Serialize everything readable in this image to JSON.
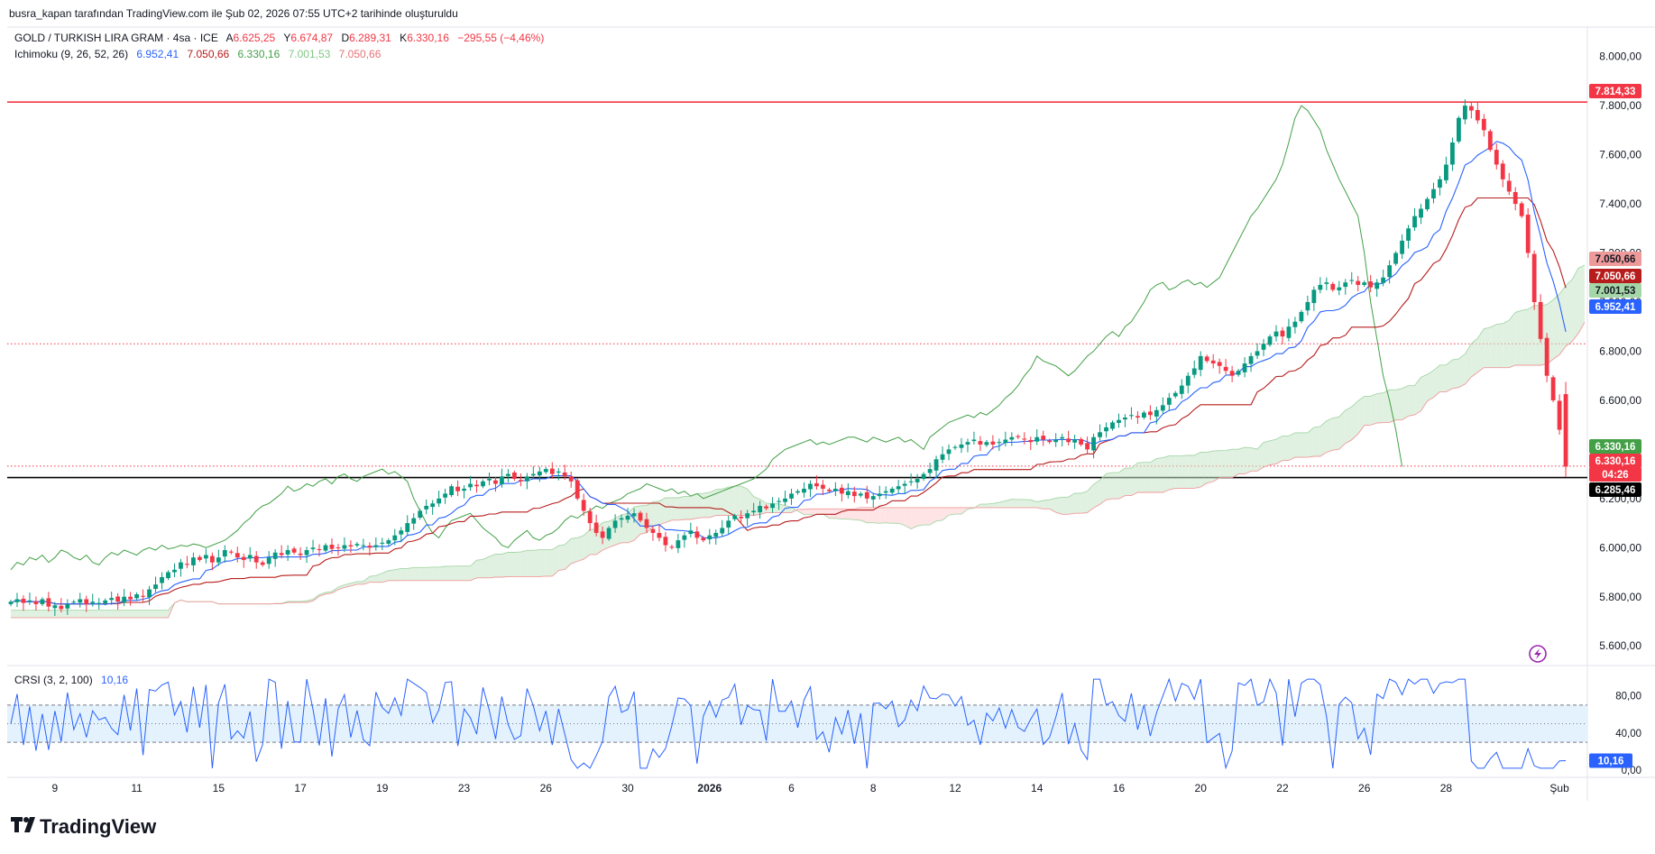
{
  "header": {
    "credit": "busra_kapan tarafından TradingView.com ile Şub 02, 2026 07:55 UTC+2 tarihinde oluşturuldu"
  },
  "legend": {
    "symbol": "GOLD / TURKISH LIRA GRAM · 4sa · ICE",
    "ohlc": [
      {
        "label": "A",
        "value": "6.625,25"
      },
      {
        "label": "Y",
        "value": "6.674,87"
      },
      {
        "label": "D",
        "value": "6.289,31"
      },
      {
        "label": "K",
        "value": "6.330,16"
      }
    ],
    "change": "−295,55 (−4,46%)",
    "indicator_name": "Ichimoku (9, 26, 52, 26)",
    "indicator_values": [
      {
        "value": "6.952,41",
        "color": "#2962ff"
      },
      {
        "value": "7.050,66",
        "color": "#b71c1c"
      },
      {
        "value": "6.330,16",
        "color": "#43a047"
      },
      {
        "value": "7.001,53",
        "color": "#a5d6a7"
      },
      {
        "value": "7.050,66",
        "color": "#ef9a9a"
      }
    ]
  },
  "crsi": {
    "name": "CRSI (3, 2, 100)",
    "value": "10,16",
    "axis": [
      "80,00",
      "40,00",
      "0,00"
    ],
    "upper": 70,
    "lower": 30,
    "line_color": "#2962ff",
    "band_fill": "#e3f2fd"
  },
  "price_tags": [
    {
      "value": "7.814,33",
      "bg": "#f23645",
      "fg": "#ffffff"
    },
    {
      "value": "7.050,66",
      "bg": "#ef9a9a",
      "fg": "#131722"
    },
    {
      "value": "7.050,66",
      "bg": "#b71c1c",
      "fg": "#ffffff"
    },
    {
      "value": "7.001,53",
      "bg": "#a5d6a7",
      "fg": "#131722"
    },
    {
      "value": "6.952,41",
      "bg": "#2962ff",
      "fg": "#ffffff"
    },
    {
      "value": "6.330,16",
      "bg": "#43a047",
      "fg": "#ffffff"
    },
    {
      "value": "6.330,16",
      "bg": "#f23645",
      "fg": "#ffffff"
    },
    {
      "value": "04:26",
      "bg": "#f23645",
      "fg": "#ffffff"
    },
    {
      "value": "6.285,46",
      "bg": "#000000",
      "fg": "#ffffff"
    }
  ],
  "brand": {
    "logo_text": "TradingView"
  },
  "colors": {
    "up": "#089981",
    "down": "#f23645",
    "tenkan": "#2962ff",
    "kijun": "#b71c1c",
    "chikou": "#43a047",
    "senkou_a": "#a5d6a7",
    "senkou_b": "#ef9a9a",
    "cloud_up": "#c8e6c9",
    "cloud_down": "#ffcdd2",
    "resistance": "#f23645",
    "support": "#000000",
    "dotted": "#f23645"
  },
  "chart_data": {
    "type": "candlestick",
    "title": "GOLD / TURKISH LIRA GRAM · 4sa · ICE",
    "ylim": [
      5520,
      8120
    ],
    "y_ticks": [
      "5.600,00",
      "5.800,00",
      "6.000,00",
      "6.200,00",
      "6.400,00",
      "6.600,00",
      "6.800,00",
      "7.000,00",
      "7.200,00",
      "7.400,00",
      "7.600,00",
      "7.800,00",
      "8.000,00"
    ],
    "y_tick_values": [
      5600,
      5800,
      6000,
      6200,
      6400,
      6600,
      6800,
      7000,
      7200,
      7400,
      7600,
      7800,
      8000
    ],
    "x_ticks": [
      "9",
      "11",
      "15",
      "17",
      "19",
      "23",
      "26",
      "30",
      "2026",
      "6",
      "8",
      "12",
      "14",
      "16",
      "20",
      "22",
      "26",
      "28",
      "Şub"
    ],
    "x_tick_bold": [
      false,
      false,
      false,
      false,
      false,
      false,
      false,
      false,
      true,
      false,
      false,
      false,
      false,
      false,
      false,
      false,
      false,
      false,
      false
    ],
    "x_tick_index": [
      7,
      20,
      33,
      46,
      59,
      72,
      85,
      98,
      111,
      124,
      137,
      150,
      163,
      176,
      189,
      202,
      215,
      228,
      246
    ],
    "horizontal_lines": [
      {
        "price": 7814.33,
        "color": "#f23645",
        "style": "solid"
      },
      {
        "price": 6830,
        "color": "#f23645",
        "style": "dotted"
      },
      {
        "price": 6332,
        "color": "#f23645",
        "style": "dotted"
      },
      {
        "price": 6285.46,
        "color": "#000000",
        "style": "solid"
      }
    ],
    "close": [
      5780,
      5790,
      5775,
      5785,
      5770,
      5790,
      5760,
      5765,
      5750,
      5770,
      5780,
      5790,
      5770,
      5780,
      5775,
      5785,
      5795,
      5780,
      5800,
      5790,
      5810,
      5800,
      5830,
      5850,
      5880,
      5900,
      5910,
      5940,
      5930,
      5960,
      5950,
      5970,
      5940,
      5960,
      5990,
      5980,
      5960,
      5950,
      5970,
      5940,
      5930,
      5960,
      5980,
      5970,
      5990,
      5980,
      5970,
      5990,
      6000,
      5990,
      6010,
      5995,
      6000,
      6010,
      6005,
      6015,
      6010,
      6000,
      6010,
      6020,
      6030,
      6050,
      6070,
      6100,
      6120,
      6150,
      6170,
      6180,
      6200,
      6220,
      6250,
      6230,
      6240,
      6260,
      6250,
      6270,
      6280,
      6260,
      6290,
      6300,
      6280,
      6270,
      6290,
      6300,
      6310,
      6320,
      6300,
      6310,
      6290,
      6270,
      6200,
      6150,
      6100,
      6060,
      6040,
      6080,
      6110,
      6120,
      6130,
      6140,
      6110,
      6080,
      6060,
      6040,
      6010,
      6000,
      6030,
      6050,
      6070,
      6040,
      6030,
      6050,
      6060,
      6080,
      6110,
      6130,
      6120,
      6140,
      6150,
      6170,
      6160,
      6180,
      6190,
      6200,
      6220,
      6230,
      6240,
      6260,
      6250,
      6240,
      6230,
      6240,
      6220,
      6230,
      6210,
      6220,
      6200,
      6210,
      6220,
      6230,
      6240,
      6250,
      6260,
      6270,
      6280,
      6300,
      6320,
      6360,
      6380,
      6400,
      6410,
      6420,
      6430,
      6440,
      6420,
      6430,
      6420,
      6430,
      6440,
      6450,
      6450,
      6440,
      6430,
      6450,
      6440,
      6430,
      6440,
      6450,
      6430,
      6440,
      6420,
      6400,
      6450,
      6470,
      6490,
      6510,
      6520,
      6530,
      6540,
      6530,
      6550,
      6540,
      6560,
      6580,
      6610,
      6630,
      6660,
      6700,
      6730,
      6780,
      6760,
      6750,
      6740,
      6720,
      6700,
      6720,
      6750,
      6780,
      6800,
      6830,
      6860,
      6880,
      6860,
      6900,
      6920,
      6960,
      7000,
      7050,
      7070,
      7080,
      7050,
      7060,
      7080,
      7090,
      7070,
      7080,
      7060,
      7080,
      7100,
      7150,
      7200,
      7250,
      7300,
      7350,
      7380,
      7420,
      7460,
      7500,
      7560,
      7650,
      7750,
      7800,
      7780,
      7740,
      7700,
      7620,
      7560,
      7500,
      7450,
      7400,
      7350,
      7200,
      7000,
      6850,
      6700,
      6600,
      6480,
      6330
    ]
  }
}
